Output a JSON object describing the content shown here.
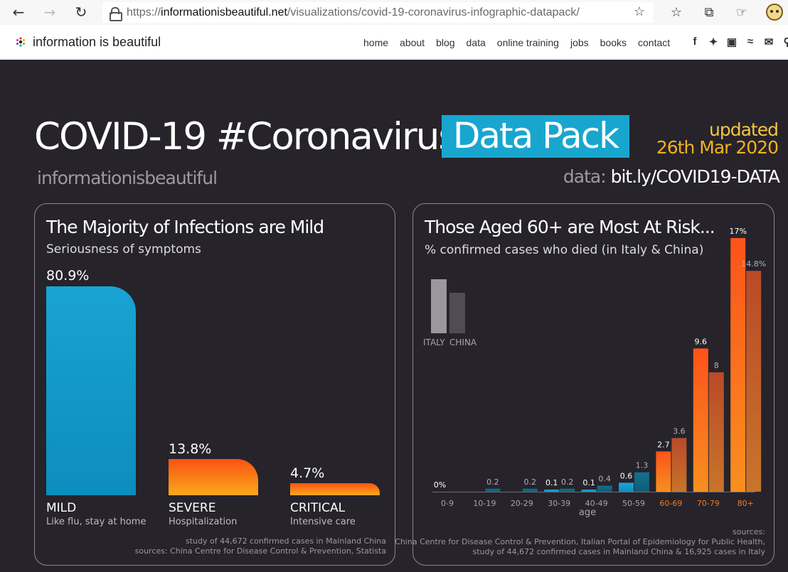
{
  "browser": {
    "url_scheme": "https://",
    "url_domain": "informationisbeautiful.net",
    "url_path": "/visualizations/covid-19-coronavirus-infographic-datapack/"
  },
  "site": {
    "logo_text": "information is beautiful",
    "nav": [
      "home",
      "about",
      "blog",
      "data",
      "online training",
      "jobs",
      "books",
      "contact"
    ],
    "social_icons": [
      "facebook-icon",
      "twitter-icon",
      "instagram-icon",
      "rss-icon",
      "email-icon",
      "search-icon"
    ]
  },
  "infographic": {
    "title": "COVID-19 #Coronavirus",
    "title_highlight": "Data Pack",
    "updated_line1": "updated",
    "updated_line2": "26th Mar 2020",
    "brand": "informationisbeautiful",
    "data_label": "data:",
    "data_url": "bit.ly/COVID19-DATA",
    "colors": {
      "background": "#26232b",
      "accent_blue": "#18a6cf",
      "accent_orange": "#f95214",
      "updated_yellow": "#f3b21b"
    }
  },
  "left_panel": {
    "title": "The Majority of Infections are Mild",
    "subtitle": "Seriousness of symptoms",
    "footnote1": "study of 44,672 confirmed cases in Mainland China",
    "footnote2": "sources: China Centre for Disease Control & Prevention, Statista",
    "bars": [
      {
        "label": "MILD",
        "sublabel": "Like flu, stay at home",
        "value_label": "80.9%",
        "value": 80.9
      },
      {
        "label": "SEVERE",
        "sublabel": "Hospitalization",
        "value_label": "13.8%",
        "value": 13.8
      },
      {
        "label": "CRITICAL",
        "sublabel": "Intensive care",
        "value_label": "4.7%",
        "value": 4.7
      }
    ]
  },
  "right_panel": {
    "title": "Those Aged 60+ are Most At Risk...",
    "subtitle": "% confirmed cases who died (in Italy & China)",
    "legend": [
      "ITALY",
      "CHINA"
    ],
    "xlabel": "age",
    "sources_label": "sources:",
    "footnote1": "China Centre for Disease Control & Prevention, Italian Portal of Epidemiology for Public Health,",
    "footnote2": "study of 44,672 confirmed cases in Mainland China & 16,925 cases in Italy"
  },
  "chart_data": {
    "type": "bar",
    "title": "Those Aged 60+ are Most At Risk...",
    "xlabel": "age",
    "categories": [
      "0-9",
      "10-19",
      "20-29",
      "30-39",
      "40-49",
      "50-59",
      "60-69",
      "70-79",
      "80+"
    ],
    "series": [
      {
        "name": "ITALY",
        "values": [
          0,
          0,
          0,
          0.1,
          0.1,
          0.6,
          2.7,
          9.6,
          17
        ]
      },
      {
        "name": "CHINA",
        "values": [
          0,
          0.2,
          0.2,
          0.2,
          0.4,
          1.3,
          3.6,
          8,
          14.8
        ]
      }
    ],
    "value_labels": {
      "ITALY": [
        "0%",
        "",
        "",
        "0.1",
        "0.1",
        "0.6",
        "2.7",
        "9.6",
        "17%"
      ],
      "CHINA": [
        "",
        "0.2",
        "0.2",
        "0.2",
        "0.4",
        "1.3",
        "3.6",
        "8",
        "14.8%"
      ]
    },
    "ylim": [
      0,
      17
    ],
    "grid": false
  }
}
